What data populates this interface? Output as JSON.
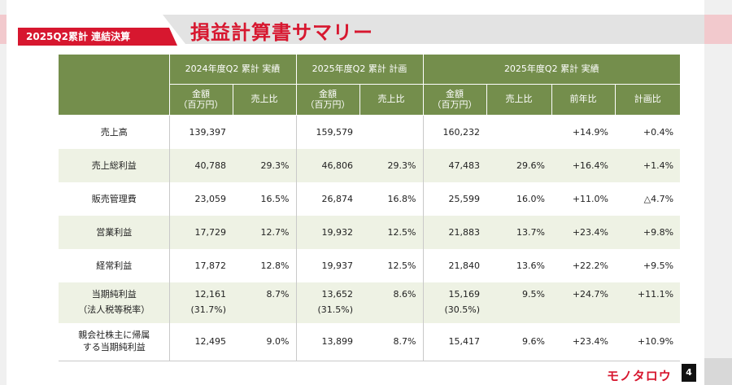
{
  "header": {
    "section_tag": "2025Q2累計 連結決算",
    "title": "損益計算書サマリー"
  },
  "table": {
    "groups": [
      "2024年度Q2 累計 実績",
      "2025年度Q2 累計 計画",
      "2025年度Q2 累計 実績"
    ],
    "subheaders": {
      "amount_line1": "金額",
      "amount_line2": "（百万円）",
      "sales_ratio": "売上比",
      "yoy": "前年比",
      "vs_plan": "計画比"
    },
    "rows": [
      {
        "label": "売上高",
        "label2": "",
        "a24": "139,397",
        "r24": "",
        "a25p": "159,579",
        "r25p": "",
        "a25": "160,232",
        "r25": "",
        "yoy": "+14.9%",
        "plan": "+0.4%",
        "sub24": "",
        "sub25p": "",
        "sub25": ""
      },
      {
        "label": "売上総利益",
        "label2": "",
        "a24": "40,788",
        "r24": "29.3%",
        "a25p": "46,806",
        "r25p": "29.3%",
        "a25": "47,483",
        "r25": "29.6%",
        "yoy": "+16.4%",
        "plan": "+1.4%",
        "sub24": "",
        "sub25p": "",
        "sub25": ""
      },
      {
        "label": "販売管理費",
        "label2": "",
        "a24": "23,059",
        "r24": "16.5%",
        "a25p": "26,874",
        "r25p": "16.8%",
        "a25": "25,599",
        "r25": "16.0%",
        "yoy": "+11.0%",
        "plan": "△4.7%",
        "sub24": "",
        "sub25p": "",
        "sub25": ""
      },
      {
        "label": "営業利益",
        "label2": "",
        "a24": "17,729",
        "r24": "12.7%",
        "a25p": "19,932",
        "r25p": "12.5%",
        "a25": "21,883",
        "r25": "13.7%",
        "yoy": "+23.4%",
        "plan": "+9.8%",
        "sub24": "",
        "sub25p": "",
        "sub25": ""
      },
      {
        "label": "経常利益",
        "label2": "",
        "a24": "17,872",
        "r24": "12.8%",
        "a25p": "19,937",
        "r25p": "12.5%",
        "a25": "21,840",
        "r25": "13.6%",
        "yoy": "+22.2%",
        "plan": "+9.5%",
        "sub24": "",
        "sub25p": "",
        "sub25": ""
      },
      {
        "label": "当期純利益",
        "label2": "（法人税等税率）",
        "a24": "12,161",
        "r24": "8.7%",
        "a25p": "13,652",
        "r25p": "8.6%",
        "a25": "15,169",
        "r25": "9.5%",
        "yoy": "+24.7%",
        "plan": "+11.1%",
        "sub24": "(31.7%)",
        "sub25p": "(31.5%)",
        "sub25": "(30.5%)"
      },
      {
        "label": "親会社株主に帰属",
        "label2": "する当期純利益",
        "a24": "12,495",
        "r24": "9.0%",
        "a25p": "13,899",
        "r25p": "8.7%",
        "a25": "15,417",
        "r25": "9.6%",
        "yoy": "+23.4%",
        "plan": "+10.9%",
        "sub24": "",
        "sub25p": "",
        "sub25": ""
      }
    ]
  },
  "footer": {
    "logo": "モノタロウ",
    "page_number": "4"
  },
  "colors": {
    "brand_red": "#d7172f",
    "header_green": "#748e4c",
    "alt_row": "#eef2e4"
  }
}
